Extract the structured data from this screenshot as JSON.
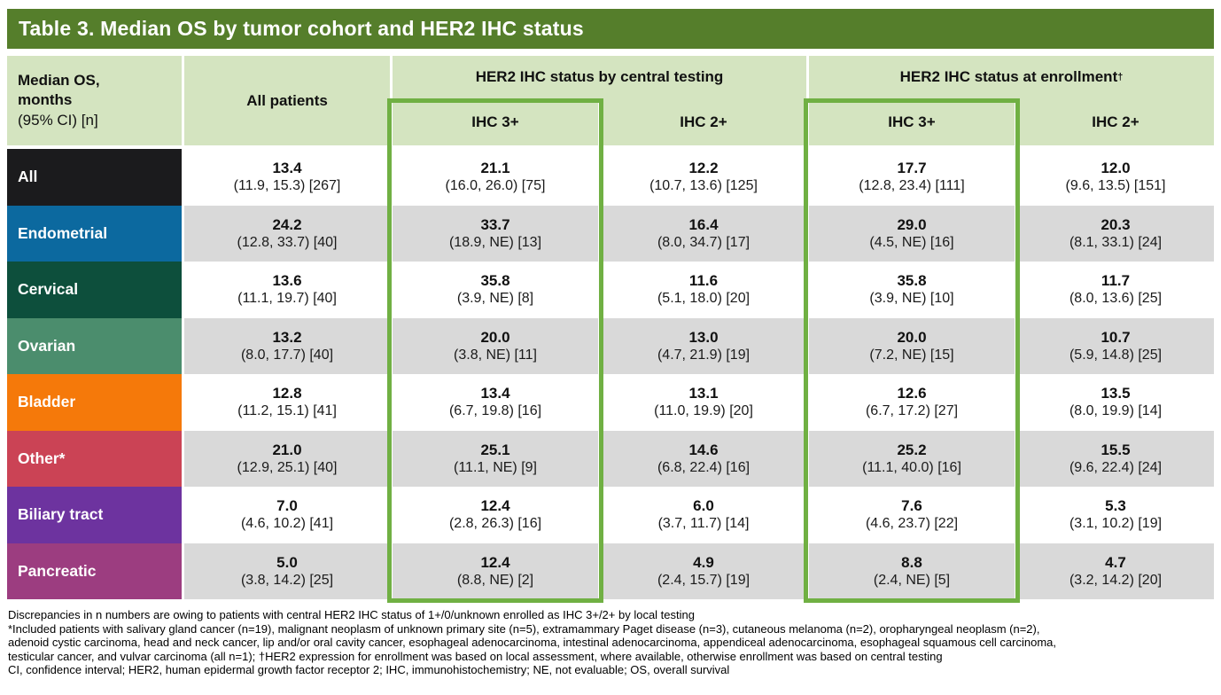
{
  "title": "Table 3. Median OS by tumor cohort and HER2 IHC status",
  "colors": {
    "title-bar-bg": "#557e2b",
    "header-bg": "#d4e4c0",
    "row-alt-bg": "#d9d9d9",
    "highlight-border": "#70b043"
  },
  "header": {
    "measure_line1": "Median OS,",
    "measure_line2": "months",
    "measure_line3": "(95% CI) [n]",
    "all_patients": "All patients",
    "group_central": "HER2 IHC status by central testing",
    "group_enrollment": "HER2 IHC status at enrollment",
    "enrollment_dagger": "†",
    "sub_central_ihc3": "IHC 3+",
    "sub_central_ihc2": "IHC 2+",
    "sub_enrollment_ihc3": "IHC 3+",
    "sub_enrollment_ihc2": "IHC 2+"
  },
  "column_keys": [
    "all-patients",
    "central-ihc3",
    "central-ihc2",
    "enrollment-ihc3",
    "enrollment-ihc2"
  ],
  "rows": [
    {
      "label": "All",
      "color": "#1b1b1d",
      "cells": [
        {
          "value": "13.4",
          "ci": "(11.9, 15.3) [267]"
        },
        {
          "value": "21.1",
          "ci": "(16.0, 26.0) [75]"
        },
        {
          "value": "12.2",
          "ci": "(10.7, 13.6) [125]"
        },
        {
          "value": "17.7",
          "ci": "(12.8, 23.4) [111]"
        },
        {
          "value": "12.0",
          "ci": "(9.6, 13.5) [151]"
        }
      ]
    },
    {
      "label": "Endometrial",
      "color": "#0c699f",
      "cells": [
        {
          "value": "24.2",
          "ci": "(12.8, 33.7) [40]"
        },
        {
          "value": "33.7",
          "ci": "(18.9, NE) [13]"
        },
        {
          "value": "16.4",
          "ci": "(8.0, 34.7) [17]"
        },
        {
          "value": "29.0",
          "ci": "(4.5, NE) [16]"
        },
        {
          "value": "20.3",
          "ci": "(8.1, 33.1) [24]"
        }
      ]
    },
    {
      "label": "Cervical",
      "color": "#0d4f3c",
      "cells": [
        {
          "value": "13.6",
          "ci": "(11.1, 19.7) [40]"
        },
        {
          "value": "35.8",
          "ci": "(3.9, NE) [8]"
        },
        {
          "value": "11.6",
          "ci": "(5.1, 18.0) [20]"
        },
        {
          "value": "35.8",
          "ci": "(3.9, NE) [10]"
        },
        {
          "value": "11.7",
          "ci": "(8.0, 13.6) [25]"
        }
      ]
    },
    {
      "label": "Ovarian",
      "color": "#4b8d6d",
      "cells": [
        {
          "value": "13.2",
          "ci": "(8.0, 17.7) [40]"
        },
        {
          "value": "20.0",
          "ci": "(3.8, NE) [11]"
        },
        {
          "value": "13.0",
          "ci": "(4.7, 21.9) [19]"
        },
        {
          "value": "20.0",
          "ci": "(7.2, NE) [15]"
        },
        {
          "value": "10.7",
          "ci": "(5.9, 14.8) [25]"
        }
      ]
    },
    {
      "label": "Bladder",
      "color": "#f5790a",
      "cells": [
        {
          "value": "12.8",
          "ci": "(11.2, 15.1) [41]"
        },
        {
          "value": "13.4",
          "ci": "(6.7, 19.8) [16]"
        },
        {
          "value": "13.1",
          "ci": "(11.0, 19.9) [20]"
        },
        {
          "value": "12.6",
          "ci": "(6.7, 17.2) [27]"
        },
        {
          "value": "13.5",
          "ci": "(8.0, 19.9) [14]"
        }
      ]
    },
    {
      "label": "Other*",
      "color": "#cb4355",
      "cells": [
        {
          "value": "21.0",
          "ci": "(12.9, 25.1) [40]"
        },
        {
          "value": "25.1",
          "ci": "(11.1, NE) [9]"
        },
        {
          "value": "14.6",
          "ci": "(6.8, 22.4) [16]"
        },
        {
          "value": "25.2",
          "ci": "(11.1, 40.0) [16]"
        },
        {
          "value": "15.5",
          "ci": "(9.6, 22.4) [24]"
        }
      ]
    },
    {
      "label": "Biliary tract",
      "color": "#6d339f",
      "cells": [
        {
          "value": "7.0",
          "ci": "(4.6, 10.2) [41]"
        },
        {
          "value": "12.4",
          "ci": "(2.8, 26.3) [16]"
        },
        {
          "value": "6.0",
          "ci": "(3.7, 11.7) [14]"
        },
        {
          "value": "7.6",
          "ci": "(4.6, 23.7) [22]"
        },
        {
          "value": "5.3",
          "ci": "(3.1, 10.2) [19]"
        }
      ]
    },
    {
      "label": "Pancreatic",
      "color": "#9c3d80",
      "cells": [
        {
          "value": "5.0",
          "ci": "(3.8, 14.2) [25]"
        },
        {
          "value": "12.4",
          "ci": "(8.8, NE) [2]"
        },
        {
          "value": "4.9",
          "ci": "(2.4, 15.7) [19]"
        },
        {
          "value": "8.8",
          "ci": "(2.4, NE) [5]"
        },
        {
          "value": "4.7",
          "ci": "(3.2, 14.2) [20]"
        }
      ]
    }
  ],
  "footnotes": [
    "Discrepancies in n numbers are owing to patients with central HER2 IHC status of 1+/0/unknown enrolled as IHC 3+/2+ by local testing",
    "*Included patients with salivary gland cancer (n=19), malignant neoplasm of unknown primary site (n=5), extramammary Paget disease (n=3), cutaneous melanoma (n=2), oropharyngeal neoplasm (n=2),",
    "adenoid cystic carcinoma, head and neck cancer, lip and/or oral cavity cancer, esophageal adenocarcinoma, intestinal adenocarcinoma, appendiceal adenocarcinoma, esophageal squamous cell carcinoma,",
    "testicular cancer, and vulvar carcinoma (all n=1); †HER2 expression for enrollment was based on local assessment, where available, otherwise enrollment was based on central testing",
    "CI, confidence interval; HER2, human epidermal growth factor receptor 2; IHC, immunohistochemistry; NE, not evaluable; OS, overall survival"
  ]
}
